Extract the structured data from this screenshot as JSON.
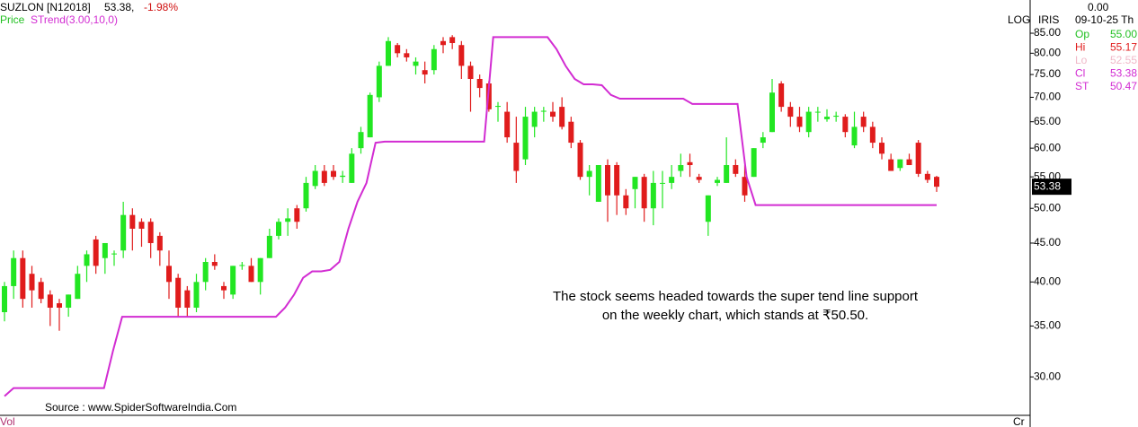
{
  "header": {
    "symbol": "SUZLON [N12018]",
    "price": "53.38,",
    "change": "-1.98%",
    "price_label": "Price",
    "indicator_label": "STrend(3.00,10,0)",
    "scale_mode": "LOG",
    "template": "IRIS"
  },
  "info": {
    "top": "0.00",
    "date": "09-10-25 Th",
    "rows": [
      [
        "Op",
        "55.00"
      ],
      [
        "Hi",
        "55.17"
      ],
      [
        "Lo",
        "52.55"
      ],
      [
        "Cl",
        "53.38"
      ],
      [
        "ST",
        "50.47"
      ]
    ]
  },
  "chart_data": {
    "type": "candlestick",
    "log_scale": true,
    "ylim": [
      26.7,
      94
    ],
    "yticks": [
      {
        "value": 30,
        "label": "30.00"
      },
      {
        "value": 35,
        "label": "35.00"
      },
      {
        "value": 40,
        "label": "40.00"
      },
      {
        "value": 45,
        "label": "45.00"
      },
      {
        "value": 50,
        "label": "50.00"
      },
      {
        "value": 55,
        "label": "55.00"
      },
      {
        "value": 60,
        "label": "60.00"
      },
      {
        "value": 65,
        "label": "65.00"
      },
      {
        "value": 70,
        "label": "70.00"
      },
      {
        "value": 75,
        "label": "75.00"
      },
      {
        "value": 80,
        "label": "80.00"
      },
      {
        "value": 85,
        "label": "85.00"
      }
    ],
    "last_price": 53.38,
    "annotation": [
      "The stock seems headed towards the super tend line support",
      "on the weekly chart, which stands at ₹50.50."
    ],
    "source": "Source : www.SpiderSoftwareIndia.Com",
    "bottom_left": "Vol",
    "bottom_right": "Cr",
    "series": [
      {
        "name": "Price",
        "type": "candlestick",
        "up_color": "#22e622",
        "down_color": "#e01c1c",
        "open": [
          36.5,
          39.5,
          43,
          41,
          40,
          38.5,
          37.5,
          37,
          38,
          42,
          45.5,
          43,
          43.5,
          44,
          49,
          48,
          48,
          46,
          42,
          40.5,
          39,
          37,
          40,
          42.5,
          39.5,
          38.5,
          42,
          42,
          40,
          43,
          46,
          48,
          50,
          50,
          53.5,
          56,
          56,
          55,
          54,
          60,
          62,
          70,
          77,
          82,
          80,
          77,
          76,
          76,
          83,
          84,
          82,
          77,
          74,
          73,
          68,
          67,
          61,
          58,
          64,
          67,
          67,
          68,
          65,
          61,
          55,
          51,
          57,
          57,
          52,
          53,
          55,
          50,
          54,
          54,
          56,
          57.5,
          55,
          48,
          54,
          54,
          57,
          55,
          55,
          61,
          63,
          73,
          68,
          66,
          63,
          67,
          65.5,
          66,
          66,
          60.5,
          66,
          64,
          61,
          58,
          56.5,
          58,
          61,
          55.5,
          55
        ],
        "high": [
          40,
          44,
          44,
          42,
          40.5,
          39,
          38,
          38.5,
          42,
          44,
          46,
          45,
          44,
          51,
          50,
          48.5,
          48.5,
          46.5,
          44,
          41,
          39.5,
          41,
          43,
          43.5,
          40,
          42,
          42.5,
          43,
          43,
          47,
          48.5,
          50,
          50.5,
          55,
          57,
          57,
          57,
          56,
          60,
          64,
          71,
          78,
          84,
          82.5,
          81,
          79,
          78,
          82,
          84,
          84.5,
          83,
          78,
          75,
          73.5,
          69,
          69,
          66,
          68,
          68,
          68,
          69,
          70,
          66,
          61.5,
          57,
          57,
          58,
          57.5,
          53,
          55,
          55.5,
          56,
          56,
          57,
          59,
          59,
          55.5,
          52,
          55,
          62,
          58,
          57,
          60,
          63,
          74,
          73.5,
          69,
          68,
          68,
          68,
          67.5,
          67,
          66.5,
          67,
          67,
          65,
          62,
          59,
          58,
          59,
          61.5,
          56,
          55.17
        ],
        "low": [
          35.5,
          38,
          37,
          37,
          37.5,
          35,
          34.5,
          36,
          38,
          40,
          41,
          41,
          42,
          43,
          44,
          44.5,
          43,
          42,
          38,
          36,
          36,
          36.5,
          39,
          41.5,
          38,
          38,
          41.5,
          40,
          38.5,
          43,
          45.5,
          46,
          47,
          49.5,
          53,
          53.5,
          54.5,
          54,
          54,
          59,
          62,
          69,
          77,
          79,
          78,
          75,
          73,
          75,
          80,
          81,
          74,
          67,
          70,
          67,
          65,
          61,
          54,
          57,
          62,
          65,
          65,
          63.5,
          60,
          54.5,
          52,
          51,
          48,
          49,
          49,
          50,
          48,
          47.5,
          50,
          53,
          55,
          55,
          54,
          46,
          53.5,
          54,
          55,
          51,
          55,
          60,
          63,
          67,
          64,
          63,
          62,
          65,
          65,
          65,
          62,
          60,
          63,
          60,
          58,
          56,
          56,
          57,
          55,
          54,
          52.55
        ],
        "close": [
          39.5,
          43,
          38,
          39,
          38,
          37,
          37,
          38.5,
          41,
          43.5,
          42,
          45,
          43.6,
          49,
          47,
          47,
          45,
          44,
          40,
          37,
          37,
          40,
          42.5,
          42,
          39,
          42,
          42.1,
          40,
          43,
          46,
          48,
          48.5,
          48,
          54,
          56,
          54,
          55,
          55.2,
          59,
          63,
          70.5,
          77,
          83,
          80,
          79,
          78,
          75,
          81,
          82,
          82.5,
          77,
          74,
          72,
          67.5,
          68.2,
          62,
          56,
          66,
          67,
          67.2,
          66,
          64,
          61,
          55,
          56,
          57,
          52,
          52,
          50,
          55,
          50,
          54,
          54,
          55,
          57,
          57,
          54.5,
          52,
          54.5,
          57,
          55.5,
          52,
          60,
          62,
          71,
          68,
          66,
          64,
          67,
          67,
          66,
          66.2,
          63,
          64,
          64,
          61,
          59,
          56,
          58,
          57,
          55.5,
          54.5,
          53.38
        ]
      },
      {
        "name": "STrend(3.00,10,0)",
        "type": "line",
        "color": "#d22cd2",
        "values": [
          28.3,
          29,
          29,
          29,
          29,
          29,
          29,
          29,
          29,
          29,
          29,
          29,
          32.5,
          36,
          36,
          36,
          36,
          36,
          36,
          36,
          36,
          36,
          36,
          36,
          36,
          36,
          36,
          36,
          36,
          36,
          36,
          37,
          38.5,
          40.5,
          41.3,
          41.3,
          41.5,
          42.5,
          47,
          51,
          54,
          61,
          61.2,
          61.2,
          61.2,
          61.2,
          61.2,
          61.2,
          61.2,
          61.2,
          61.2,
          61.2,
          61.2,
          61.2,
          84,
          84,
          84,
          84,
          84,
          84,
          84,
          81,
          77,
          74,
          72.8,
          72.8,
          72.6,
          70.5,
          69.7,
          69.7,
          69.7,
          69.7,
          69.7,
          69.7,
          69.7,
          69.7,
          68.6,
          68.6,
          68.6,
          68.6,
          68.6,
          68.6,
          55,
          50.5,
          50.5,
          50.5,
          50.5,
          50.5,
          50.5,
          50.5,
          50.5,
          50.5,
          50.5,
          50.5,
          50.5,
          50.5,
          50.5,
          50.5,
          50.5,
          50.5,
          50.5,
          50.5,
          50.5,
          50.5
        ]
      }
    ]
  }
}
